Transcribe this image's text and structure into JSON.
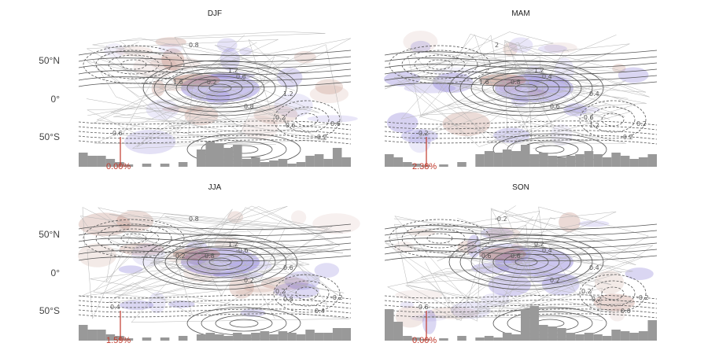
{
  "lat_labels": [
    "50°N",
    "0°",
    "50°S"
  ],
  "panels": [
    {
      "key": "djf",
      "title": "DJF",
      "percent": "0.00%",
      "contour_labels": [
        "0.8",
        "1.2",
        "1.6",
        "-0.2",
        "0.6",
        "-0.6",
        "0.2",
        "-0.6",
        "0.8",
        "-0.2",
        "0.6",
        "1.2"
      ]
    },
    {
      "key": "mam",
      "title": "MAM",
      "percent": "2.38%",
      "contour_labels": [
        "2",
        "1.2",
        "1.6",
        "0.8",
        "0.4",
        "-0.2",
        "-0.6",
        "1.2",
        "0.6",
        "-0.2",
        "0.2",
        "0.4"
      ]
    },
    {
      "key": "jja",
      "title": "JJA",
      "percent": "1.59%",
      "contour_labels": [
        "0.8",
        "1.2",
        "-0.2",
        "0.8",
        "-0.6",
        "0.4",
        "0.2",
        "0.8",
        "0.2",
        "0.4",
        "-0.2",
        "0.6"
      ]
    },
    {
      "key": "son",
      "title": "SON",
      "percent": "0.00%",
      "contour_labels": [
        "-0.2",
        "0.2",
        "-0.6",
        "0.6",
        "0.4",
        "-0.6",
        "0.2",
        "-0.2",
        "0.2",
        "0.6",
        "-0.2",
        "0.4"
      ]
    }
  ],
  "colors": {
    "positive": "#b07060",
    "negative": "#6a5acd",
    "bars": "#999999",
    "marker": "#c0392b"
  }
}
